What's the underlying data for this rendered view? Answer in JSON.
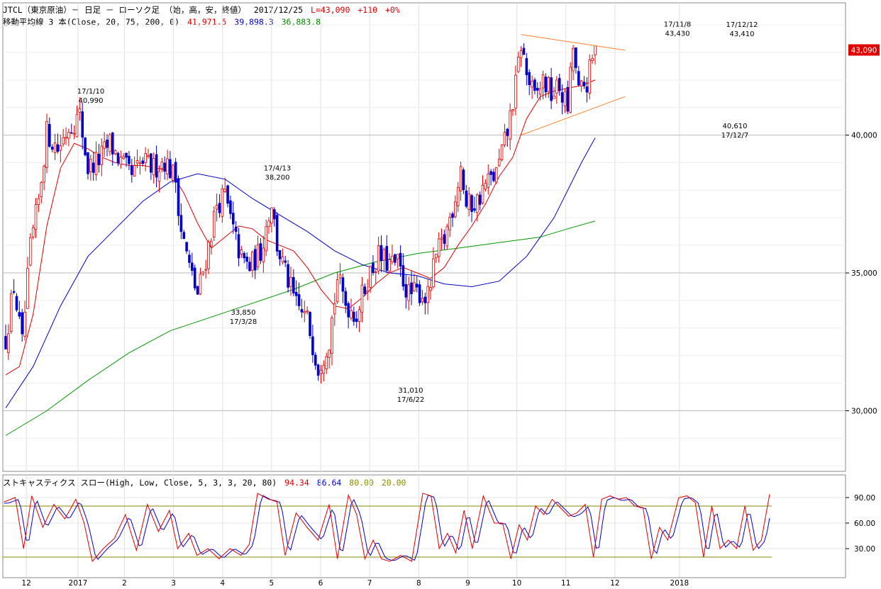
{
  "header": {
    "title": "JTCL（東京原油）－ 日足 － ローソク足 （始，高，安，終値）",
    "date": "2017/12/25",
    "last": "L=43,090",
    "change": "+110",
    "pct": "+0%"
  },
  "ma_header": {
    "label": "移動平均線 3 本(Close, 20, 75, 200, 0)",
    "v20": "41,971.5",
    "v75": "39,898.3",
    "v200": "36,883.8"
  },
  "stoch_header": {
    "label": "ストキャスティクス スロー(High, Low, Close, 5, 3, 3, 20, 80)",
    "k": "94.34",
    "d": "86.64",
    "upper": "80.00",
    "lower": "20.00"
  },
  "price_badge": "43,090",
  "colors": {
    "up": "#e00000",
    "down": "#0000cc",
    "ma20": "#e00000",
    "ma75": "#0000cc",
    "ma200": "#009900",
    "trend": "#ff7f27",
    "level": "#888800",
    "badge": "#e00000"
  },
  "chart_data": {
    "type": "candlestick",
    "y_ticks": [
      {
        "value": 30000,
        "label": "30,000"
      },
      {
        "value": 35000,
        "label": "35,000"
      },
      {
        "value": 40000,
        "label": "40,000"
      }
    ],
    "ylim": [
      27800,
      44800
    ],
    "x_ticks": [
      {
        "t": 0.04,
        "label": "12"
      },
      {
        "t": 0.14,
        "label": "2017"
      },
      {
        "t": 0.23,
        "label": "2"
      },
      {
        "t": 0.325,
        "label": "3"
      },
      {
        "t": 0.42,
        "label": "4"
      },
      {
        "t": 0.515,
        "label": "5"
      },
      {
        "t": 0.61,
        "label": "6"
      },
      {
        "t": 0.705,
        "label": "7"
      },
      {
        "t": 0.8,
        "label": "8"
      },
      {
        "t": 0.895,
        "label": "9"
      },
      {
        "t": 0.99,
        "label": "10"
      },
      {
        "t": 1.085,
        "label": "11"
      },
      {
        "t": 1.18,
        "label": "12"
      },
      {
        "t": 1.305,
        "label": "2018"
      }
    ],
    "close_path": [
      [
        0,
        32600
      ],
      [
        3,
        34500
      ],
      [
        6,
        32400
      ],
      [
        9,
        35900
      ],
      [
        12,
        37600
      ],
      [
        15,
        40100
      ],
      [
        19,
        39500
      ],
      [
        23,
        40300
      ],
      [
        27,
        40700
      ],
      [
        30,
        38800
      ],
      [
        34,
        39100
      ],
      [
        38,
        39700
      ],
      [
        42,
        39000
      ],
      [
        46,
        38500
      ],
      [
        50,
        39000
      ],
      [
        54,
        38800
      ],
      [
        58,
        39100
      ],
      [
        62,
        38400
      ],
      [
        64,
        36600
      ],
      [
        67,
        35200
      ],
      [
        70,
        34200
      ],
      [
        73,
        35500
      ],
      [
        77,
        37500
      ],
      [
        80,
        37800
      ],
      [
        83,
        36500
      ],
      [
        86,
        35500
      ],
      [
        89,
        35200
      ],
      [
        93,
        35800
      ],
      [
        97,
        37600
      ],
      [
        99,
        36000
      ],
      [
        102,
        35000
      ],
      [
        106,
        33800
      ],
      [
        110,
        33300
      ],
      [
        114,
        31600
      ],
      [
        118,
        32600
      ],
      [
        121,
        34800
      ],
      [
        124,
        33900
      ],
      [
        128,
        33500
      ],
      [
        132,
        34800
      ],
      [
        136,
        35600
      ],
      [
        140,
        35300
      ],
      [
        143,
        35300
      ],
      [
        147,
        34200
      ],
      [
        151,
        34300
      ],
      [
        154,
        34100
      ],
      [
        157,
        35600
      ],
      [
        160,
        36200
      ],
      [
        164,
        37800
      ],
      [
        166,
        38900
      ],
      [
        168,
        37400
      ],
      [
        172,
        37600
      ],
      [
        175,
        38200
      ],
      [
        179,
        38600
      ],
      [
        183,
        40100
      ],
      [
        186,
        41800
      ],
      [
        188,
        43300
      ],
      [
        190,
        42200
      ],
      [
        193,
        41300
      ],
      [
        196,
        42000
      ],
      [
        199,
        41500
      ],
      [
        202,
        41700
      ],
      [
        205,
        41000
      ],
      [
        207,
        43200
      ],
      [
        209,
        41500
      ],
      [
        212,
        41900
      ],
      [
        215,
        43090
      ]
    ],
    "ma20": [
      [
        0,
        31300
      ],
      [
        5,
        31600
      ],
      [
        10,
        33500
      ],
      [
        15,
        36700
      ],
      [
        20,
        38800
      ],
      [
        25,
        39700
      ],
      [
        30,
        39500
      ],
      [
        35,
        39200
      ],
      [
        40,
        39000
      ],
      [
        45,
        38900
      ],
      [
        50,
        38900
      ],
      [
        55,
        38800
      ],
      [
        60,
        38700
      ],
      [
        65,
        37900
      ],
      [
        70,
        36800
      ],
      [
        75,
        35900
      ],
      [
        80,
        36300
      ],
      [
        85,
        36700
      ],
      [
        90,
        36600
      ],
      [
        95,
        36200
      ],
      [
        100,
        36000
      ],
      [
        105,
        35800
      ],
      [
        110,
        35200
      ],
      [
        115,
        34400
      ],
      [
        120,
        33800
      ],
      [
        125,
        33700
      ],
      [
        130,
        34100
      ],
      [
        135,
        34600
      ],
      [
        140,
        35000
      ],
      [
        145,
        35200
      ],
      [
        150,
        35000
      ],
      [
        155,
        34800
      ],
      [
        160,
        35200
      ],
      [
        165,
        36000
      ],
      [
        170,
        36700
      ],
      [
        175,
        37500
      ],
      [
        180,
        38500
      ],
      [
        185,
        39200
      ],
      [
        190,
        40600
      ],
      [
        195,
        41400
      ],
      [
        200,
        41600
      ],
      [
        205,
        41700
      ],
      [
        210,
        41800
      ],
      [
        215,
        42000
      ]
    ],
    "ma75": [
      [
        0,
        30100
      ],
      [
        10,
        31600
      ],
      [
        20,
        33800
      ],
      [
        30,
        35600
      ],
      [
        40,
        36600
      ],
      [
        50,
        37600
      ],
      [
        60,
        38300
      ],
      [
        70,
        38600
      ],
      [
        80,
        38400
      ],
      [
        90,
        37700
      ],
      [
        100,
        37100
      ],
      [
        110,
        36500
      ],
      [
        120,
        35800
      ],
      [
        130,
        35300
      ],
      [
        140,
        35000
      ],
      [
        150,
        34900
      ],
      [
        160,
        34600
      ],
      [
        170,
        34500
      ],
      [
        180,
        34700
      ],
      [
        190,
        35600
      ],
      [
        200,
        37000
      ],
      [
        210,
        39000
      ],
      [
        215,
        39900
      ]
    ],
    "ma200": [
      [
        0,
        29100
      ],
      [
        15,
        30000
      ],
      [
        30,
        31100
      ],
      [
        45,
        32100
      ],
      [
        60,
        32900
      ],
      [
        75,
        33400
      ],
      [
        90,
        33900
      ],
      [
        105,
        34400
      ],
      [
        120,
        35000
      ],
      [
        135,
        35400
      ],
      [
        150,
        35700
      ],
      [
        165,
        35900
      ],
      [
        180,
        36100
      ],
      [
        195,
        36300
      ],
      [
        205,
        36600
      ],
      [
        215,
        36880
      ]
    ],
    "trendlines": [
      {
        "from": [
          188,
          43650
        ],
        "to": [
          226,
          43080
        ]
      },
      {
        "from": [
          188,
          40000
        ],
        "to": [
          226,
          41400
        ]
      }
    ],
    "annotations": [
      {
        "i": 28,
        "value": 40990,
        "lines": [
          "17/1/10",
          "40,990"
        ],
        "pos": "above"
      },
      {
        "i": 85,
        "value": 33850,
        "lines": [
          "33,850",
          "17/3/28"
        ],
        "pos": "below"
      },
      {
        "i": 98,
        "value": 38200,
        "lines": [
          "17/4/13",
          "38,200"
        ],
        "pos": "above"
      },
      {
        "i": 145,
        "value": 31010,
        "lines": [
          "31,010",
          "17/6/22"
        ],
        "pos": "below"
      },
      {
        "i": 250,
        "value": 43430,
        "lines": [
          "17/11/8",
          "43,430"
        ],
        "pos": "above"
      },
      {
        "i": 272,
        "value": 43410,
        "lines": [
          "17/12/12",
          "43,410"
        ],
        "pos": "above"
      },
      {
        "i": 267,
        "value": 40610,
        "lines": [
          "40,610",
          "17/12/7"
        ],
        "pos": "below"
      }
    ],
    "stoch_ticks": [
      {
        "value": 90,
        "label": "90.00"
      },
      {
        "value": 60,
        "label": "60.00"
      },
      {
        "value": 30,
        "label": "30.00"
      }
    ],
    "stoch_levels": [
      80,
      20
    ],
    "stoch_k": [
      [
        0,
        85
      ],
      [
        4,
        90
      ],
      [
        7,
        30
      ],
      [
        10,
        92
      ],
      [
        14,
        55
      ],
      [
        18,
        82
      ],
      [
        22,
        65
      ],
      [
        26,
        88
      ],
      [
        29,
        60
      ],
      [
        32,
        15
      ],
      [
        36,
        30
      ],
      [
        40,
        42
      ],
      [
        44,
        70
      ],
      [
        48,
        28
      ],
      [
        52,
        82
      ],
      [
        56,
        50
      ],
      [
        60,
        75
      ],
      [
        63,
        30
      ],
      [
        67,
        48
      ],
      [
        70,
        22
      ],
      [
        74,
        30
      ],
      [
        78,
        18
      ],
      [
        82,
        30
      ],
      [
        86,
        22
      ],
      [
        89,
        35
      ],
      [
        92,
        95
      ],
      [
        96,
        88
      ],
      [
        99,
        86
      ],
      [
        102,
        22
      ],
      [
        106,
        72
      ],
      [
        110,
        55
      ],
      [
        114,
        40
      ],
      [
        118,
        82
      ],
      [
        121,
        18
      ],
      [
        125,
        93
      ],
      [
        128,
        70
      ],
      [
        131,
        18
      ],
      [
        134,
        40
      ],
      [
        137,
        18
      ],
      [
        140,
        15
      ],
      [
        144,
        22
      ],
      [
        148,
        15
      ],
      [
        152,
        95
      ],
      [
        155,
        92
      ],
      [
        158,
        30
      ],
      [
        161,
        48
      ],
      [
        164,
        25
      ],
      [
        167,
        75
      ],
      [
        170,
        30
      ],
      [
        174,
        92
      ],
      [
        178,
        60
      ],
      [
        181,
        60
      ],
      [
        184,
        18
      ],
      [
        187,
        58
      ],
      [
        190,
        40
      ],
      [
        193,
        80
      ],
      [
        196,
        70
      ],
      [
        199,
        88
      ],
      [
        202,
        78
      ],
      [
        205,
        68
      ],
      [
        208,
        72
      ],
      [
        211,
        82
      ],
      [
        214,
        20
      ],
      [
        217,
        88
      ],
      [
        220,
        92
      ],
      [
        223,
        88
      ],
      [
        226,
        90
      ],
      [
        229,
        80
      ],
      [
        232,
        78
      ],
      [
        235,
        18
      ],
      [
        238,
        55
      ],
      [
        241,
        40
      ],
      [
        245,
        90
      ],
      [
        248,
        92
      ],
      [
        251,
        84
      ],
      [
        254,
        20
      ],
      [
        257,
        80
      ],
      [
        260,
        30
      ],
      [
        263,
        40
      ],
      [
        266,
        30
      ],
      [
        269,
        80
      ],
      [
        272,
        28
      ],
      [
        275,
        40
      ],
      [
        278,
        94
      ]
    ]
  }
}
